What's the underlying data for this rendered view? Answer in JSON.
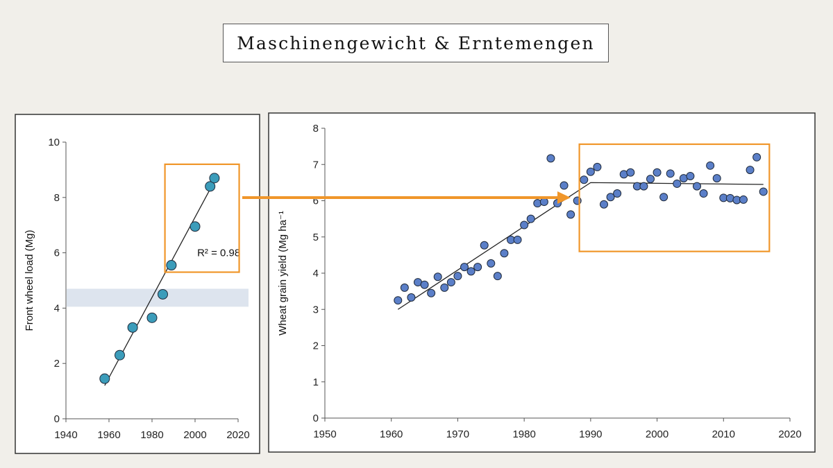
{
  "slide": {
    "title": "Maschinengewicht & Erntemengen"
  },
  "colors": {
    "background": "#f1efea",
    "highlight": "#f0962a",
    "left_points": "#3b9cba",
    "right_points": "#5b7fc8",
    "band": "#dde4ee"
  },
  "chart_data": [
    {
      "type": "scatter",
      "title": "",
      "xlabel": "",
      "ylabel": "Front wheel load (Mg)",
      "xlim": [
        1940,
        2020
      ],
      "ylim": [
        0,
        10
      ],
      "xticks": [
        "1940",
        "1960",
        "1980",
        "2000",
        "2020"
      ],
      "yticks": [
        "0",
        "2",
        "4",
        "6",
        "8",
        "10"
      ],
      "points": [
        [
          1958,
          1.45
        ],
        [
          1965,
          2.3
        ],
        [
          1971,
          3.3
        ],
        [
          1980,
          3.65
        ],
        [
          1985,
          4.5
        ],
        [
          1989,
          5.55
        ],
        [
          2000,
          6.95
        ],
        [
          2007,
          8.4
        ],
        [
          2009,
          8.7
        ]
      ],
      "trendline": [
        [
          1958,
          1.2
        ],
        [
          2007,
          8.3
        ]
      ],
      "annotation": "R² = 0.98",
      "band": {
        "y_from": 4.05,
        "y_to": 4.7
      },
      "highlight_box": {
        "x": [
          1986,
          2020.5
        ],
        "y": [
          5.3,
          9.2
        ]
      }
    },
    {
      "type": "scatter",
      "title": "",
      "xlabel": "",
      "ylabel": "Wheat grain yield (Mg ha⁻¹",
      "xlim": [
        1950,
        2020
      ],
      "ylim": [
        0,
        8
      ],
      "xticks": [
        "1950",
        "1960",
        "1970",
        "1980",
        "1990",
        "2000",
        "2010",
        "2020"
      ],
      "yticks": [
        "0",
        "1",
        "2",
        "3",
        "4",
        "5",
        "6",
        "7",
        "8"
      ],
      "points": [
        [
          1961,
          3.25
        ],
        [
          1962,
          3.6
        ],
        [
          1963,
          3.33
        ],
        [
          1964,
          3.75
        ],
        [
          1965,
          3.68
        ],
        [
          1966,
          3.45
        ],
        [
          1967,
          3.9
        ],
        [
          1968,
          3.6
        ],
        [
          1969,
          3.75
        ],
        [
          1970,
          3.92
        ],
        [
          1971,
          4.17
        ],
        [
          1972,
          4.05
        ],
        [
          1973,
          4.17
        ],
        [
          1974,
          4.77
        ],
        [
          1975,
          4.27
        ],
        [
          1976,
          3.92
        ],
        [
          1977,
          4.55
        ],
        [
          1978,
          4.92
        ],
        [
          1979,
          4.92
        ],
        [
          1980,
          5.33
        ],
        [
          1981,
          5.5
        ],
        [
          1982,
          5.93
        ],
        [
          1983,
          5.97
        ],
        [
          1984,
          7.17
        ],
        [
          1985,
          5.93
        ],
        [
          1986,
          6.42
        ],
        [
          1987,
          5.62
        ],
        [
          1988,
          6.0
        ],
        [
          1989,
          6.58
        ],
        [
          1990,
          6.8
        ],
        [
          1991,
          6.93
        ],
        [
          1992,
          5.9
        ],
        [
          1993,
          6.1
        ],
        [
          1994,
          6.2
        ],
        [
          1995,
          6.73
        ],
        [
          1996,
          6.78
        ],
        [
          1997,
          6.4
        ],
        [
          1998,
          6.4
        ],
        [
          1999,
          6.6
        ],
        [
          2000,
          6.78
        ],
        [
          2001,
          6.1
        ],
        [
          2002,
          6.75
        ],
        [
          2003,
          6.47
        ],
        [
          2004,
          6.62
        ],
        [
          2005,
          6.68
        ],
        [
          2006,
          6.4
        ],
        [
          2007,
          6.2
        ],
        [
          2008,
          6.97
        ],
        [
          2009,
          6.62
        ],
        [
          2010,
          6.08
        ],
        [
          2011,
          6.07
        ],
        [
          2012,
          6.02
        ],
        [
          2013,
          6.03
        ],
        [
          2014,
          6.85
        ],
        [
          2015,
          7.2
        ],
        [
          2016,
          6.25
        ]
      ],
      "trendline": [
        [
          1961,
          3.0
        ],
        [
          1990,
          6.5
        ],
        [
          2016,
          6.45
        ]
      ],
      "highlight_box": {
        "x": [
          1988.3,
          2016.9
        ],
        "y": [
          4.6,
          7.56
        ]
      }
    }
  ]
}
